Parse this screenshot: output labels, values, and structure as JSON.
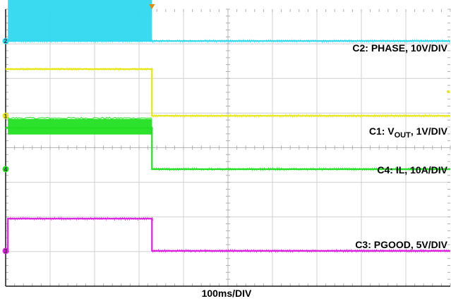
{
  "chart_data": {
    "type": "line",
    "title": "",
    "xlabel": "100ms/DIV",
    "ylabel": "",
    "grid": true,
    "divisions": {
      "x": 10,
      "y": 8
    },
    "x_unit": "div",
    "y_unit": "div",
    "xlim": [
      0,
      10
    ],
    "ylim": [
      0,
      8
    ],
    "trigger_marker_x": 3.29,
    "colors": {
      "background": "#ffffff",
      "grid": "#d0d0d0",
      "frame": "#1a1a1a"
    },
    "series": [
      {
        "label": "C2: PHASE, 10V/DIV",
        "label_color": "#33ccee",
        "color": "#2fd9ef",
        "ground_marker": "2",
        "ground_level": 7.08,
        "type": "switching",
        "points": [
          [
            0,
            7.08
          ],
          [
            3.29,
            7.08
          ],
          [
            3.29,
            7.08
          ],
          [
            10,
            7.08
          ]
        ],
        "band": {
          "from": 0.05,
          "to": 3.29,
          "low": 7.08,
          "high": 8.4
        }
      },
      {
        "label": "C1: VOUT, 1V/DIV",
        "label_parts": {
          "prefix": "C1: V",
          "sub": "OUT",
          "suffix": ", 1V/DIV"
        },
        "label_color": "#c8b400",
        "color": "#e6e619",
        "ground_marker": "1",
        "ground_level": 4.92,
        "points": [
          [
            0,
            6.27
          ],
          [
            3.29,
            6.27
          ],
          [
            3.29,
            4.92
          ],
          [
            10,
            4.92
          ]
        ]
      },
      {
        "label": "C4: IL, 10A/DIV",
        "label_color": "#22bb22",
        "color": "#22e022",
        "ground_marker": "4",
        "ground_level": 3.38,
        "type": "switching",
        "points": [
          [
            0,
            4.57
          ],
          [
            3.29,
            4.57
          ],
          [
            3.29,
            3.38
          ],
          [
            10,
            3.38
          ]
        ],
        "band": {
          "from": 0.05,
          "to": 3.29,
          "low": 4.38,
          "high": 4.83
        }
      },
      {
        "label": "C3: PGOOD, 5V/DIV",
        "label_color": "#dd22cc",
        "color": "#e020e0",
        "ground_marker": "3",
        "ground_level": 1.02,
        "points": [
          [
            0,
            1.02
          ],
          [
            0.05,
            1.02
          ],
          [
            0.05,
            1.95
          ],
          [
            3.29,
            1.95
          ],
          [
            3.29,
            1.02
          ],
          [
            10,
            1.02
          ]
        ]
      }
    ]
  }
}
